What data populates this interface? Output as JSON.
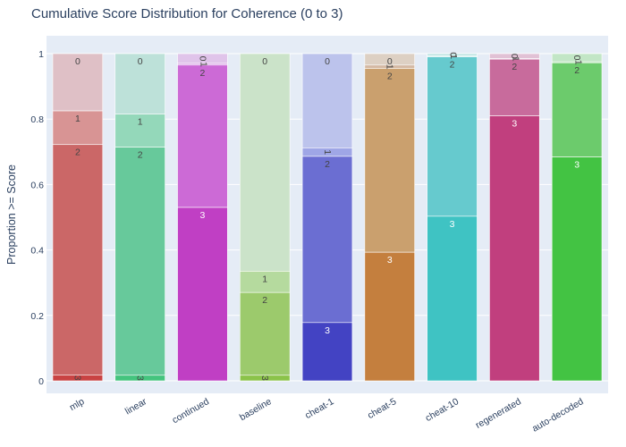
{
  "chart_data": {
    "type": "bar",
    "stacking": "overlay",
    "title": "Cumulative Score Distribution for Coherence (0 to 3)",
    "xlabel": "",
    "ylabel": "Proportion >= Score",
    "ylim": [
      0,
      1
    ],
    "y_ticks": [
      0,
      0.2,
      0.4,
      0.6,
      0.8,
      1
    ],
    "y_tick_labels": [
      "0",
      "0.2",
      "0.4",
      "0.6",
      "0.8",
      "1"
    ],
    "grid": true,
    "score_levels": [
      "0",
      "1",
      "2",
      "3"
    ],
    "categories": [
      "mlp",
      "linear",
      "continued",
      "baseline",
      "cheat-1",
      "cheat-5",
      "cheat-10",
      "regenerated",
      "auto-decoded"
    ],
    "bars": [
      {
        "name": "mlp",
        "cumulative": [
          1.0,
          0.825,
          0.722,
          0.018
        ],
        "colors": [
          "#dfc0c6",
          "#d89494",
          "#cb6767",
          "#c94343"
        ]
      },
      {
        "name": "linear",
        "cumulative": [
          1.0,
          0.815,
          0.714,
          0.017
        ],
        "colors": [
          "#bde1d9",
          "#94d8ba",
          "#67c99b",
          "#44c47e"
        ]
      },
      {
        "name": "continued",
        "cumulative": [
          1.0,
          0.97,
          0.965,
          0.53
        ],
        "colors": [
          "#e0c4ea",
          "#d7a3e4",
          "#cc6ad6",
          "#c03fc4"
        ]
      },
      {
        "name": "baseline",
        "cumulative": [
          1.0,
          0.335,
          0.27,
          0.017
        ],
        "colors": [
          "#cbe3c9",
          "#b5da9e",
          "#9cca6c",
          "#8bc34a"
        ]
      },
      {
        "name": "cheat-1",
        "cumulative": [
          1.0,
          0.712,
          0.686,
          0.178
        ],
        "colors": [
          "#bcc3ec",
          "#9fa6e6",
          "#6b6ed2",
          "#4343c3"
        ]
      },
      {
        "name": "cheat-5",
        "cumulative": [
          1.0,
          0.965,
          0.955,
          0.393
        ],
        "colors": [
          "#ddd0c3",
          "#d4b9a3",
          "#caa06e",
          "#c47f3e"
        ]
      },
      {
        "name": "cheat-10",
        "cumulative": [
          1.0,
          0.993,
          0.99,
          0.503
        ],
        "colors": [
          "#c1e5e3",
          "#9fe0df",
          "#66cace",
          "#3fc3c3"
        ]
      },
      {
        "name": "regenerated",
        "cumulative": [
          1.0,
          0.985,
          0.983,
          0.81
        ],
        "colors": [
          "#e1c1d5",
          "#d9a3c4",
          "#c86b9c",
          "#c13f7e"
        ]
      },
      {
        "name": "auto-decoded",
        "cumulative": [
          1.0,
          0.975,
          0.972,
          0.684
        ],
        "colors": [
          "#c2e6c6",
          "#9fdc9f",
          "#6ccb6c",
          "#43c343"
        ]
      }
    ],
    "segment_labels": [
      [
        "0",
        "1",
        "2",
        "3"
      ],
      [
        "0",
        "1",
        "2",
        "3"
      ],
      [
        "0",
        "1",
        "2",
        "3"
      ],
      [
        "0",
        "1",
        "2",
        "3"
      ],
      [
        "0",
        "1",
        "2",
        "3"
      ],
      [
        "0",
        "1",
        "2",
        "3"
      ],
      [
        "0",
        "1",
        "2",
        "3"
      ],
      [
        "0",
        "1",
        "2",
        "3"
      ],
      [
        "0",
        "1",
        "2",
        "3"
      ]
    ]
  }
}
